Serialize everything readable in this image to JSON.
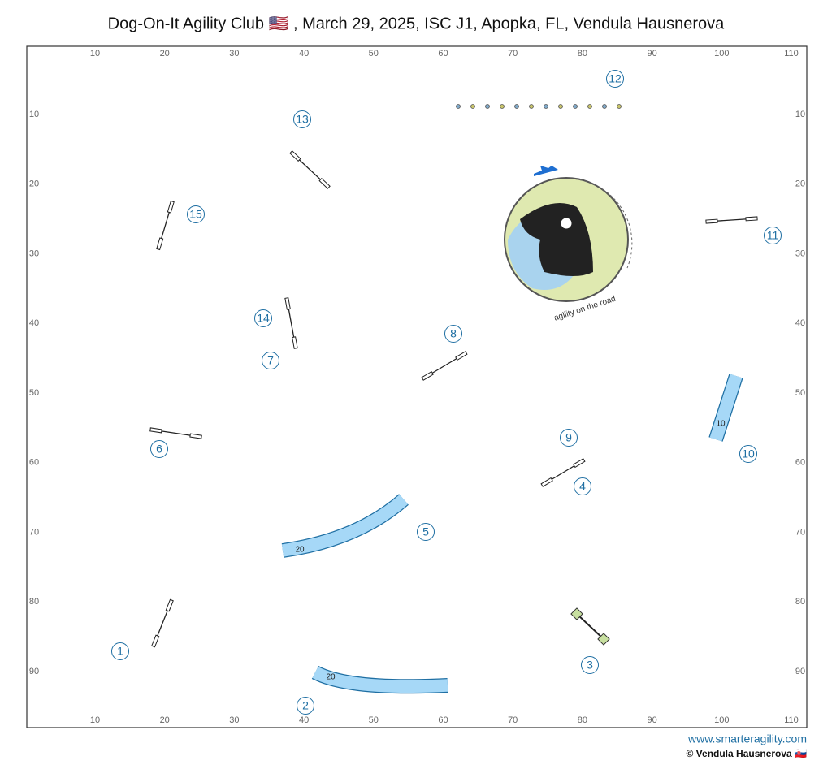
{
  "header": {
    "title": "Dog-On-It Agility Club 🇺🇸 , March 29, 2025, ISC J1, Apopka, FL, Vendula Hausnerova"
  },
  "grid": {
    "x_ticks": [
      10,
      20,
      30,
      40,
      50,
      60,
      70,
      80,
      90,
      100,
      110
    ],
    "y_ticks": [
      10,
      20,
      30,
      40,
      50,
      60,
      70,
      80,
      90
    ]
  },
  "obstacles": [
    {
      "label": "1"
    },
    {
      "label": "2"
    },
    {
      "label": "3"
    },
    {
      "label": "4"
    },
    {
      "label": "5"
    },
    {
      "label": "6"
    },
    {
      "label": "7"
    },
    {
      "label": "8"
    },
    {
      "label": "9"
    },
    {
      "label": "10"
    },
    {
      "label": "11"
    },
    {
      "label": "12"
    },
    {
      "label": "13"
    },
    {
      "label": "14"
    },
    {
      "label": "15"
    }
  ],
  "tunnels": [
    {
      "label": "20"
    },
    {
      "label": "20"
    },
    {
      "label": "10"
    }
  ],
  "logo": {
    "caption": "agility on the road"
  },
  "footer": {
    "website": "www.smarteragility.com",
    "copyright": "© Vendula Hausnerova 🇸🇰"
  }
}
